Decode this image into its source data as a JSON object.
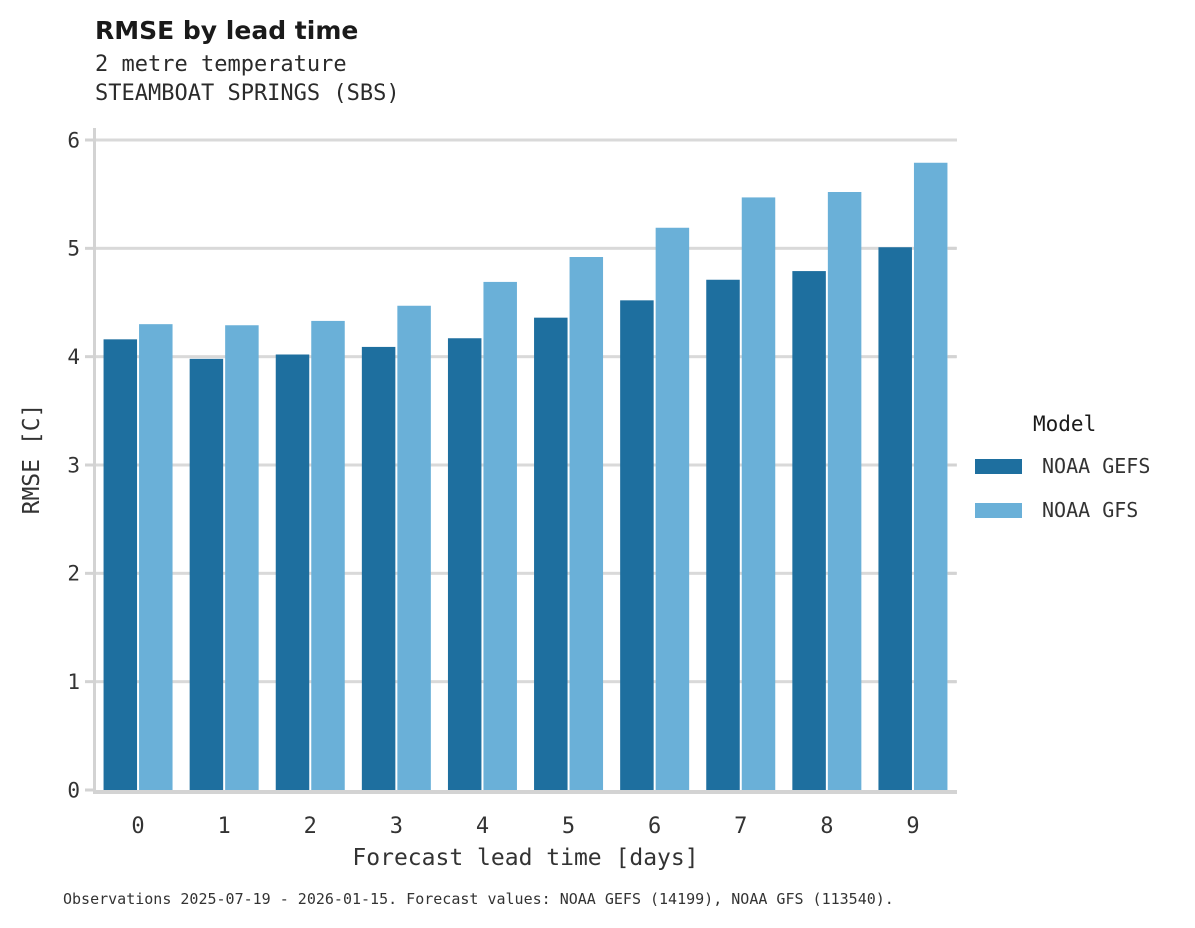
{
  "header": {
    "title": "RMSE by lead time",
    "subtitle1": "2 metre temperature",
    "subtitle2": "STEAMBOAT SPRINGS (SBS)"
  },
  "legend": {
    "title": "Model"
  },
  "footer": {
    "text": "Observations 2025-07-19 - 2026-01-15. Forecast values: NOAA GEFS (14199), NOAA GFS (113540)."
  },
  "colors": {
    "gefs_bar": "#1e6f9f",
    "gfs_bar": "#6ab0d8",
    "gridline": "#d9d9d9",
    "axis_line": "#d3d3d3",
    "tick_text": "#333333",
    "title_text": "#1a1a1a"
  },
  "chart_data": {
    "type": "bar",
    "title": "RMSE by lead time",
    "subtitle": [
      "2 metre temperature",
      "STEAMBOAT SPRINGS (SBS)"
    ],
    "xlabel": "Forecast lead time [days]",
    "ylabel": "RMSE [C]",
    "categories": [
      "0",
      "1",
      "2",
      "3",
      "4",
      "5",
      "6",
      "7",
      "8",
      "9"
    ],
    "series": [
      {
        "name": "NOAA GEFS",
        "color": "#1e6f9f",
        "values": [
          4.16,
          3.98,
          4.02,
          4.09,
          4.17,
          4.36,
          4.52,
          4.71,
          4.79,
          5.01
        ]
      },
      {
        "name": "NOAA GFS",
        "color": "#6ab0d8",
        "values": [
          4.3,
          4.29,
          4.33,
          4.47,
          4.69,
          4.92,
          5.19,
          5.47,
          5.52,
          5.79
        ]
      }
    ],
    "ylim": [
      0,
      6
    ],
    "yticks": [
      0,
      1,
      2,
      3,
      4,
      5,
      6
    ],
    "grid": "horizontal",
    "legend_title": "Model",
    "legend_position": "right",
    "caption": "Observations 2025-07-19 - 2026-01-15. Forecast values: NOAA GEFS (14199), NOAA GFS (113540)."
  }
}
